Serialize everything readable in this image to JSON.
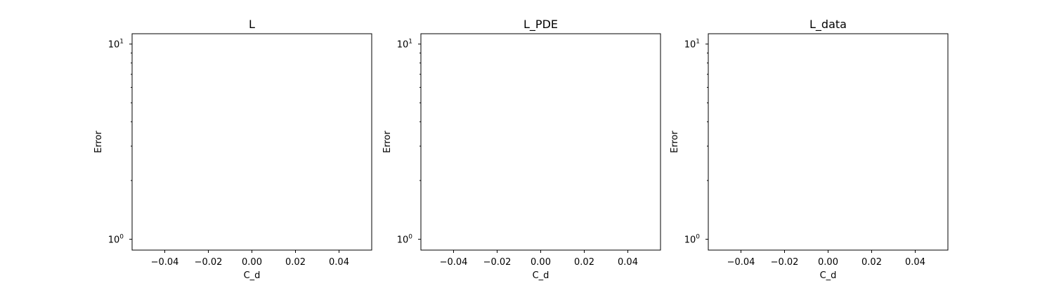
{
  "chart_data": [
    {
      "type": "scatter",
      "title": "L",
      "xlabel": "C_d",
      "ylabel": "Error",
      "xlim": [
        -0.055,
        0.055
      ],
      "ylim": [
        0.88,
        11.3
      ],
      "yscale": "log",
      "xticks": [
        -0.04,
        -0.02,
        0.0,
        0.02,
        0.04
      ],
      "xtick_labels": [
        "−0.04",
        "−0.02",
        "0.00",
        "0.02",
        "0.04"
      ],
      "ytick_major": [
        {
          "base": "10",
          "exp": "1",
          "value": 10
        },
        {
          "base": "10",
          "exp": "0",
          "value": 1
        }
      ],
      "ytick_minor": [
        2,
        3,
        4,
        5,
        6,
        7,
        8,
        9
      ],
      "series": [],
      "grid": false
    },
    {
      "type": "scatter",
      "title": "L_PDE",
      "xlabel": "C_d",
      "ylabel": "Error",
      "xlim": [
        -0.055,
        0.055
      ],
      "ylim": [
        0.88,
        11.3
      ],
      "yscale": "log",
      "xticks": [
        -0.04,
        -0.02,
        0.0,
        0.02,
        0.04
      ],
      "xtick_labels": [
        "−0.04",
        "−0.02",
        "0.00",
        "0.02",
        "0.04"
      ],
      "ytick_major": [
        {
          "base": "10",
          "exp": "1",
          "value": 10
        },
        {
          "base": "10",
          "exp": "0",
          "value": 1
        }
      ],
      "ytick_minor": [
        2,
        3,
        4,
        5,
        6,
        7,
        8,
        9
      ],
      "series": [],
      "grid": false
    },
    {
      "type": "scatter",
      "title": "L_data",
      "xlabel": "C_d",
      "ylabel": "Error",
      "xlim": [
        -0.055,
        0.055
      ],
      "ylim": [
        0.88,
        11.3
      ],
      "yscale": "log",
      "xticks": [
        -0.04,
        -0.02,
        0.0,
        0.02,
        0.04
      ],
      "xtick_labels": [
        "−0.04",
        "−0.02",
        "0.00",
        "0.02",
        "0.04"
      ],
      "ytick_major": [
        {
          "base": "10",
          "exp": "1",
          "value": 10
        },
        {
          "base": "10",
          "exp": "0",
          "value": 1
        }
      ],
      "ytick_minor": [
        2,
        3,
        4,
        5,
        6,
        7,
        8,
        9
      ],
      "series": [],
      "grid": false
    }
  ]
}
